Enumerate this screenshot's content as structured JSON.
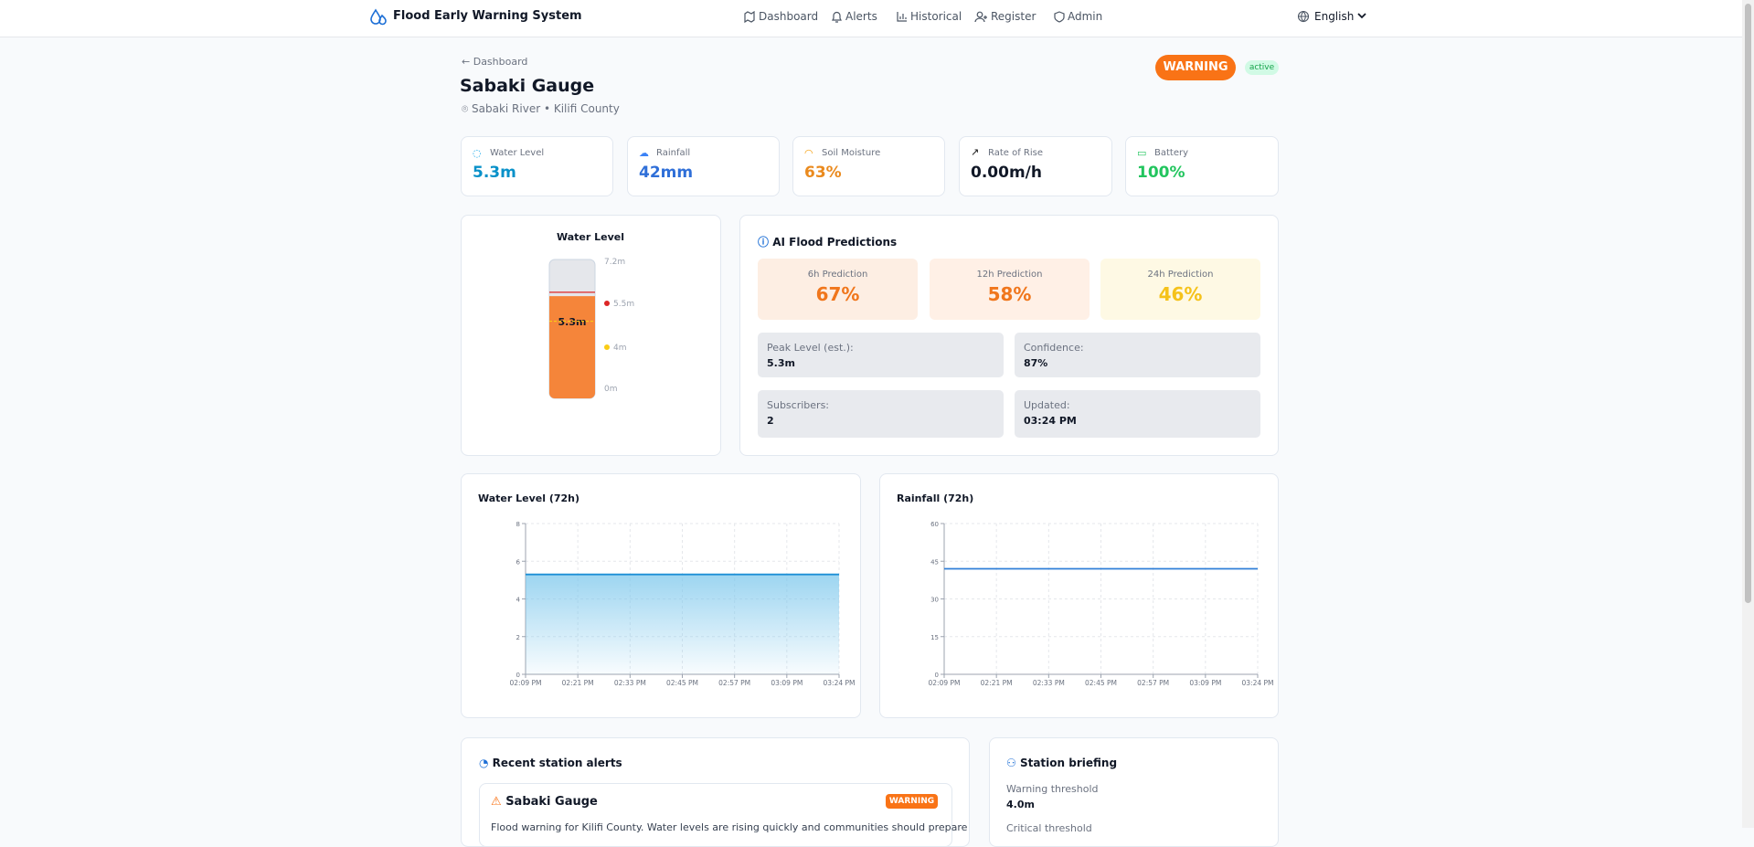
{
  "header": {
    "brand": "Flood Early Warning System",
    "nav": [
      "Dashboard",
      "Alerts",
      "Historical",
      "Register",
      "Admin"
    ],
    "language": "English"
  },
  "station": {
    "back": "Dashboard",
    "name": "Sabaki Gauge",
    "location": "Sabaki River • Kilifi County",
    "level_badge": "WARNING",
    "status": "active"
  },
  "stats": [
    {
      "label": "Water Level",
      "value": "5.3m"
    },
    {
      "label": "Rainfall",
      "value": "42mm"
    },
    {
      "label": "Soil Moisture",
      "value": "63%"
    },
    {
      "label": "Rate of Rise",
      "value": "0.00m/h"
    },
    {
      "label": "Battery",
      "value": "100%"
    }
  ],
  "gauge": {
    "title": "Water Level",
    "value": 5.3,
    "value_label": "5.3m",
    "ylim": [
      0,
      7.2
    ],
    "ticks": [
      {
        "value": 7.2,
        "label": "7.2m"
      },
      {
        "value": 5.5,
        "label": "5.5m",
        "color": "#dc2626"
      },
      {
        "value": 4,
        "label": "4m",
        "color": "#facc15"
      },
      {
        "value": 0,
        "label": "0m"
      }
    ],
    "color": "#f5853a"
  },
  "predictions": {
    "title": "AI Flood Predictions",
    "horizons": [
      {
        "label": "6h Prediction",
        "value": "67%"
      },
      {
        "label": "12h Prediction",
        "value": "58%"
      },
      {
        "label": "24h Prediction",
        "value": "46%"
      }
    ],
    "details": [
      {
        "label": "Peak Level (est.):",
        "value": "5.3m"
      },
      {
        "label": "Confidence:",
        "value": "87%"
      },
      {
        "label": "Subscribers:",
        "value": "2"
      },
      {
        "label": "Updated:",
        "value": "03:24 PM"
      }
    ]
  },
  "chart_data": [
    {
      "type": "area",
      "title": "Water Level (72h)",
      "categories": [
        "02:09 PM",
        "02:21 PM",
        "02:33 PM",
        "02:45 PM",
        "02:57 PM",
        "03:09 PM",
        "03:24 PM"
      ],
      "values": [
        5.3,
        5.3,
        5.3,
        5.3,
        5.3,
        5.3,
        5.3
      ],
      "ylim": [
        0,
        8
      ],
      "yticks": [
        0,
        2,
        4,
        6,
        8
      ],
      "grid": true,
      "color": "#1d8fd6"
    },
    {
      "type": "line",
      "title": "Rainfall (72h)",
      "categories": [
        "02:09 PM",
        "02:21 PM",
        "02:33 PM",
        "02:45 PM",
        "02:57 PM",
        "03:09 PM",
        "03:24 PM"
      ],
      "values": [
        42,
        42,
        42,
        42,
        42,
        42,
        42
      ],
      "ylim": [
        0,
        60
      ],
      "yticks": [
        0,
        15,
        30,
        45,
        60
      ],
      "grid": true,
      "color": "#2f7fd8"
    }
  ],
  "alerts": {
    "title": "Recent station alerts",
    "items": [
      {
        "station": "Sabaki Gauge",
        "level": "WARNING",
        "message": "Flood warning for Kilifi County. Water levels are rising quickly and communities should prepare"
      }
    ]
  },
  "briefing": {
    "title": "Station briefing",
    "items": [
      {
        "label": "Warning threshold",
        "value": "4.0m"
      },
      {
        "label": "Critical threshold"
      }
    ]
  }
}
